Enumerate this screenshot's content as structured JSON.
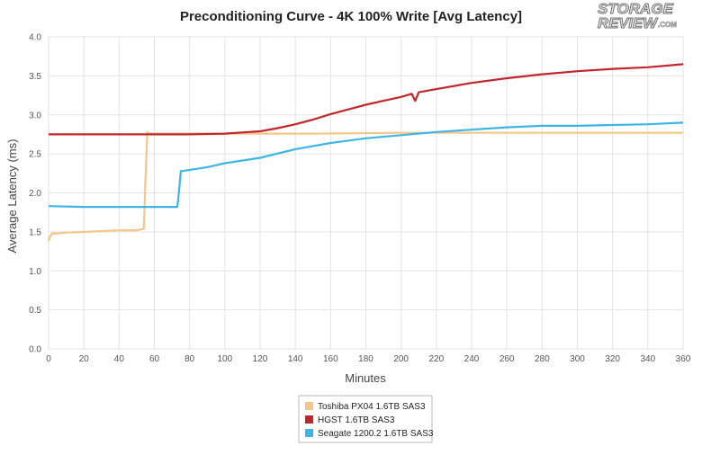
{
  "logo": {
    "line1": "STORAGE",
    "line2": "REVIEW",
    "suffix": ".COM"
  },
  "chart_data": {
    "type": "line",
    "title": "Preconditioning Curve - 4K 100% Write [Avg Latency]",
    "xlabel": "Minutes",
    "ylabel": "Average Latency (ms)",
    "xlim": [
      0,
      360
    ],
    "ylim": [
      0,
      4.0
    ],
    "x_ticks": [
      0,
      20,
      40,
      60,
      80,
      100,
      120,
      140,
      160,
      180,
      200,
      220,
      240,
      260,
      280,
      300,
      320,
      340,
      360
    ],
    "y_ticks": [
      0,
      0.5,
      1.0,
      1.5,
      2.0,
      2.5,
      3.0,
      3.5,
      4.0
    ],
    "y_tick_labels": [
      "0.0",
      "0.5",
      "1.0",
      "1.5",
      "2.0",
      "2.5",
      "3.0",
      "3.5",
      "4.0"
    ],
    "grid": true,
    "legend_position": "bottom-center",
    "series": [
      {
        "name": "Toshiba PX04 1.6TB SAS3",
        "color": "#f3c78a",
        "x": [
          0,
          1,
          2,
          5,
          10,
          20,
          30,
          40,
          50,
          54,
          55,
          56,
          57,
          60,
          80,
          100,
          120,
          150,
          200,
          250,
          300,
          360
        ],
        "y": [
          1.38,
          1.45,
          1.48,
          1.48,
          1.49,
          1.5,
          1.51,
          1.52,
          1.52,
          1.54,
          2.2,
          2.78,
          2.76,
          2.76,
          2.76,
          2.76,
          2.76,
          2.76,
          2.77,
          2.77,
          2.77,
          2.77
        ]
      },
      {
        "name": "HGST 1.6TB SAS3",
        "color": "#c0272d",
        "x": [
          0,
          20,
          40,
          60,
          80,
          100,
          120,
          130,
          140,
          150,
          160,
          170,
          180,
          190,
          200,
          206,
          208,
          210,
          220,
          240,
          260,
          280,
          300,
          320,
          340,
          360
        ],
        "y": [
          2.75,
          2.75,
          2.75,
          2.75,
          2.75,
          2.76,
          2.79,
          2.83,
          2.88,
          2.94,
          3.01,
          3.07,
          3.13,
          3.18,
          3.23,
          3.27,
          3.18,
          3.29,
          3.33,
          3.41,
          3.47,
          3.52,
          3.56,
          3.59,
          3.61,
          3.65
        ]
      },
      {
        "name": "Seagate 1200.2 1.6TB SAS3",
        "color": "#3fb5e5",
        "x": [
          0,
          20,
          40,
          60,
          70,
          73,
          74,
          75,
          76,
          90,
          100,
          120,
          140,
          160,
          180,
          200,
          220,
          240,
          260,
          280,
          300,
          320,
          340,
          360
        ],
        "y": [
          1.83,
          1.82,
          1.82,
          1.82,
          1.82,
          1.82,
          2.02,
          2.28,
          2.28,
          2.33,
          2.38,
          2.45,
          2.56,
          2.64,
          2.7,
          2.74,
          2.78,
          2.81,
          2.84,
          2.86,
          2.86,
          2.87,
          2.88,
          2.9
        ]
      }
    ]
  }
}
